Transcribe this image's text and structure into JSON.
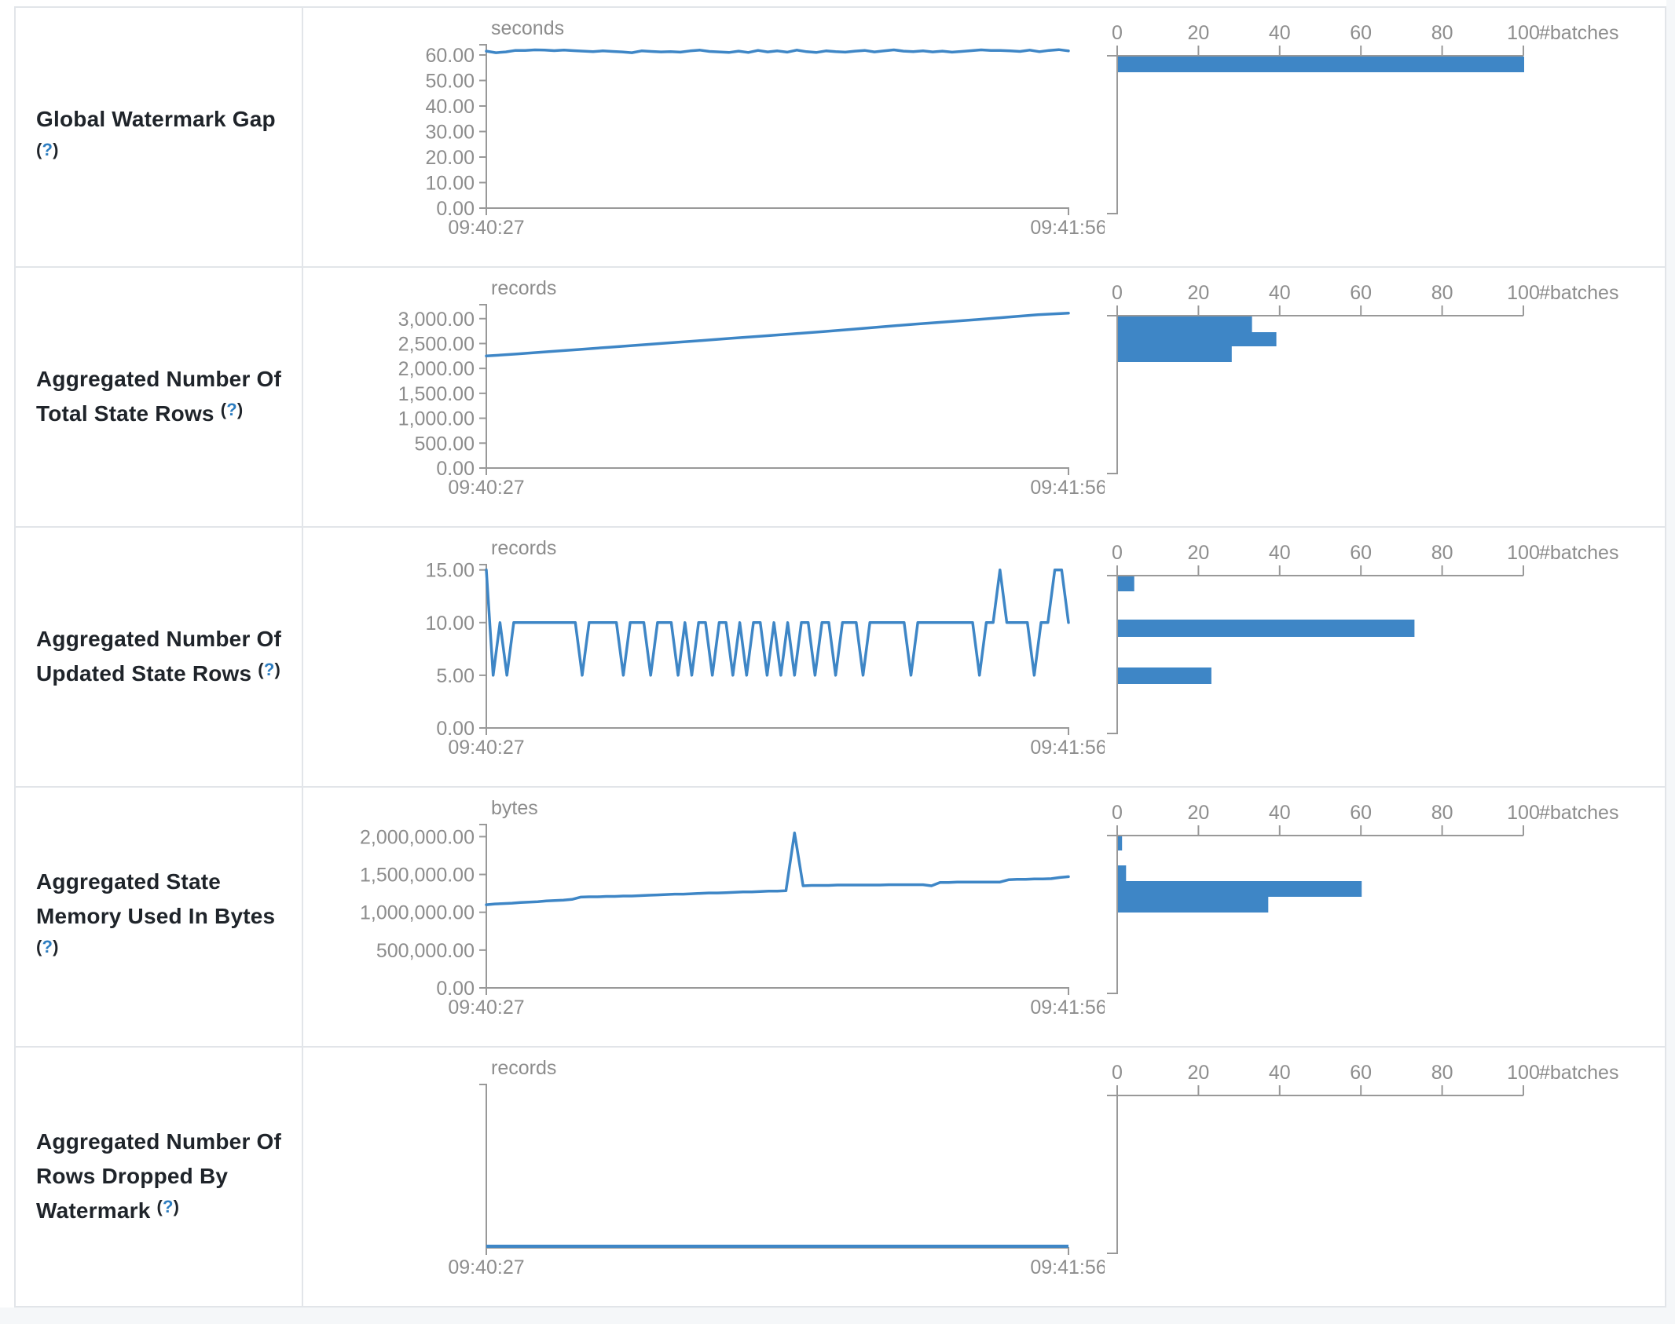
{
  "theme": {
    "accent_blue": "#3e86c6",
    "axis_gray": "#999999",
    "tick_text_gray": "#8d8d8d",
    "label_text": "#1f242a",
    "help_blue": "#2d7dc0",
    "border_gray": "#e2e5e9",
    "page_bg": "#f5f7f9"
  },
  "ui": {
    "help_open": "(",
    "help_q": "?",
    "help_close": ")"
  },
  "time_axis": {
    "start": "09:40:27",
    "end": "09:41:56"
  },
  "hist_axis": {
    "ticks": [
      0,
      20,
      40,
      60,
      80,
      100
    ],
    "max": 100,
    "label": "#batches"
  },
  "chart_data": [
    {
      "type": "line",
      "title": "Global Watermark Gap",
      "unit": "seconds",
      "ylim": [
        0,
        64
      ],
      "y_ticks": [
        0,
        10,
        20,
        30,
        40,
        50,
        60
      ],
      "series": [
        61.5,
        60.9,
        61.2,
        61.8,
        61.8,
        62.0,
        61.9,
        61.7,
        61.9,
        61.7,
        61.5,
        61.3,
        61.6,
        61.4,
        61.2,
        60.9,
        61.6,
        61.4,
        61.2,
        61.3,
        61.1,
        61.6,
        61.9,
        61.4,
        61.2,
        61.0,
        61.5,
        61.0,
        61.8,
        61.2,
        61.6,
        61.1,
        61.9,
        61.3,
        61.0,
        61.6,
        61.3,
        61.1,
        61.5,
        61.8,
        61.2,
        61.6,
        62.0,
        61.5,
        61.3,
        61.6,
        61.2,
        61.5,
        61.1,
        61.4,
        61.7,
        62.0,
        61.8,
        61.8,
        61.6,
        61.4,
        61.9,
        61.3,
        61.8,
        62.1,
        61.6
      ],
      "histogram": {
        "type": "bar",
        "bars": [
          {
            "value": 100,
            "offset": 1,
            "height": 20
          }
        ]
      }
    },
    {
      "type": "line",
      "title": "Aggregated Number Of Total State Rows",
      "unit": "records",
      "ylim": [
        0,
        3280
      ],
      "y_ticks": [
        0,
        500,
        1000,
        1500,
        2000,
        2500,
        3000
      ],
      "series": [
        2250,
        2290,
        2335,
        2380,
        2425,
        2470,
        2515,
        2560,
        2605,
        2650,
        2695,
        2740,
        2790,
        2840,
        2890,
        2935,
        2980,
        3030,
        3080,
        3110
      ],
      "histogram": {
        "type": "bar",
        "bars": [
          {
            "value": 33,
            "offset": 1,
            "height": 20
          },
          {
            "value": 39,
            "offset": 21,
            "height": 18
          },
          {
            "value": 28,
            "offset": 39,
            "height": 20
          }
        ]
      }
    },
    {
      "type": "line",
      "title": "Aggregated Number Of Updated State Rows",
      "unit": "records",
      "ylim": [
        0,
        15.5
      ],
      "y_ticks": [
        0,
        5,
        10,
        15
      ],
      "series": [
        15,
        5,
        10,
        5,
        10,
        10,
        10,
        10,
        10,
        10,
        10,
        10,
        10,
        10,
        5,
        10,
        10,
        10,
        10,
        10,
        5,
        10,
        10,
        10,
        5,
        10,
        10,
        10,
        5,
        10,
        5,
        10,
        10,
        5,
        10,
        10,
        5,
        10,
        5,
        10,
        10,
        5,
        10,
        5,
        10,
        5,
        10,
        10,
        5,
        10,
        10,
        5,
        10,
        10,
        10,
        5,
        10,
        10,
        10,
        10,
        10,
        10,
        5,
        10,
        10,
        10,
        10,
        10,
        10,
        10,
        10,
        10,
        5,
        10,
        10,
        15,
        10,
        10,
        10,
        10,
        5,
        10,
        10,
        15,
        15,
        10
      ],
      "histogram": {
        "type": "bar",
        "bars": [
          {
            "value": 4,
            "offset": 1,
            "height": 19
          },
          {
            "value": 73,
            "offset": 56,
            "height": 22
          },
          {
            "value": 23,
            "offset": 117,
            "height": 21
          }
        ]
      }
    },
    {
      "type": "line",
      "title": "Aggregated State Memory Used In Bytes",
      "unit": "bytes",
      "ylim": [
        0,
        2160000
      ],
      "y_ticks": [
        0,
        500000,
        1000000,
        1500000,
        2000000
      ],
      "series": [
        1100000,
        1110000,
        1115000,
        1120000,
        1130000,
        1135000,
        1140000,
        1150000,
        1155000,
        1160000,
        1170000,
        1200000,
        1205000,
        1205000,
        1210000,
        1210000,
        1215000,
        1215000,
        1220000,
        1225000,
        1230000,
        1235000,
        1240000,
        1240000,
        1245000,
        1250000,
        1255000,
        1255000,
        1260000,
        1265000,
        1270000,
        1270000,
        1275000,
        1280000,
        1280000,
        1285000,
        2050000,
        1350000,
        1355000,
        1355000,
        1355000,
        1360000,
        1360000,
        1360000,
        1360000,
        1360000,
        1360000,
        1365000,
        1365000,
        1365000,
        1365000,
        1365000,
        1350000,
        1395000,
        1395000,
        1400000,
        1400000,
        1400000,
        1400000,
        1400000,
        1400000,
        1430000,
        1435000,
        1435000,
        1440000,
        1440000,
        1445000,
        1460000,
        1470000
      ],
      "histogram": {
        "type": "bar",
        "bars": [
          {
            "value": 1,
            "offset": 1,
            "height": 18
          },
          {
            "value": 2,
            "offset": 38,
            "height": 20
          },
          {
            "value": 60,
            "offset": 58,
            "height": 20
          },
          {
            "value": 37,
            "offset": 78,
            "height": 20
          }
        ]
      }
    },
    {
      "type": "line",
      "title": "Aggregated Number Of Rows Dropped By Watermark",
      "unit": "records",
      "ylim": [
        0,
        1
      ],
      "y_ticks": [],
      "series": [
        0,
        0,
        0,
        0,
        0,
        0,
        0,
        0,
        0,
        0
      ],
      "histogram": {
        "type": "bar",
        "bars": []
      }
    }
  ]
}
